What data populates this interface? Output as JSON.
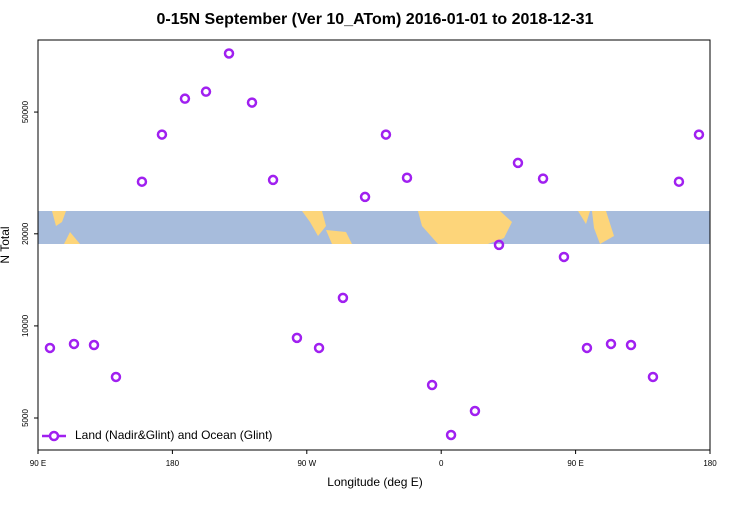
{
  "chart_data": {
    "type": "scatter",
    "title": "0-15N September (Ver 10_ATom)   2016-01-01 to 2018-12-31",
    "x_label": "Longitude (deg E)",
    "y_label": "N Total",
    "log_y": true,
    "legend_position": "bottom-left",
    "xlim": [
      90,
      540
    ],
    "ylim": [
      3930,
      86000
    ],
    "xticks": [
      {
        "value": 90,
        "label": "90 E"
      },
      {
        "value": 180,
        "label": "180"
      },
      {
        "value": 270,
        "label": "90 W"
      },
      {
        "value": 360,
        "label": "0"
      },
      {
        "value": 450,
        "label": "90 E"
      },
      {
        "value": 540,
        "label": "180"
      }
    ],
    "yticks": [
      5000,
      10000,
      20000,
      50000
    ],
    "series": [
      {
        "name": "Land (Nadir&Glint) and Ocean (Glint)",
        "color": "#a020f0",
        "x": [
          98.0,
          114.1,
          127.5,
          142.2,
          159.6,
          173.0,
          188.4,
          202.5,
          217.9,
          233.3,
          247.4,
          263.4,
          278.2,
          294.2,
          309.0,
          323.0,
          337.1,
          353.9,
          366.6,
          382.6,
          398.7,
          411.4,
          428.2,
          442.2,
          457.6,
          473.7,
          487.1,
          501.8,
          519.2,
          532.6
        ],
        "values": [
          8470,
          8730,
          8660,
          6810,
          29600,
          42200,
          55300,
          58300,
          77700,
          53700,
          30000,
          9140,
          8470,
          12350,
          26400,
          42200,
          30500,
          6410,
          4400,
          5270,
          18400,
          34100,
          30300,
          16800,
          8470,
          8730,
          8660,
          6810,
          29600,
          42200
        ]
      }
    ]
  }
}
